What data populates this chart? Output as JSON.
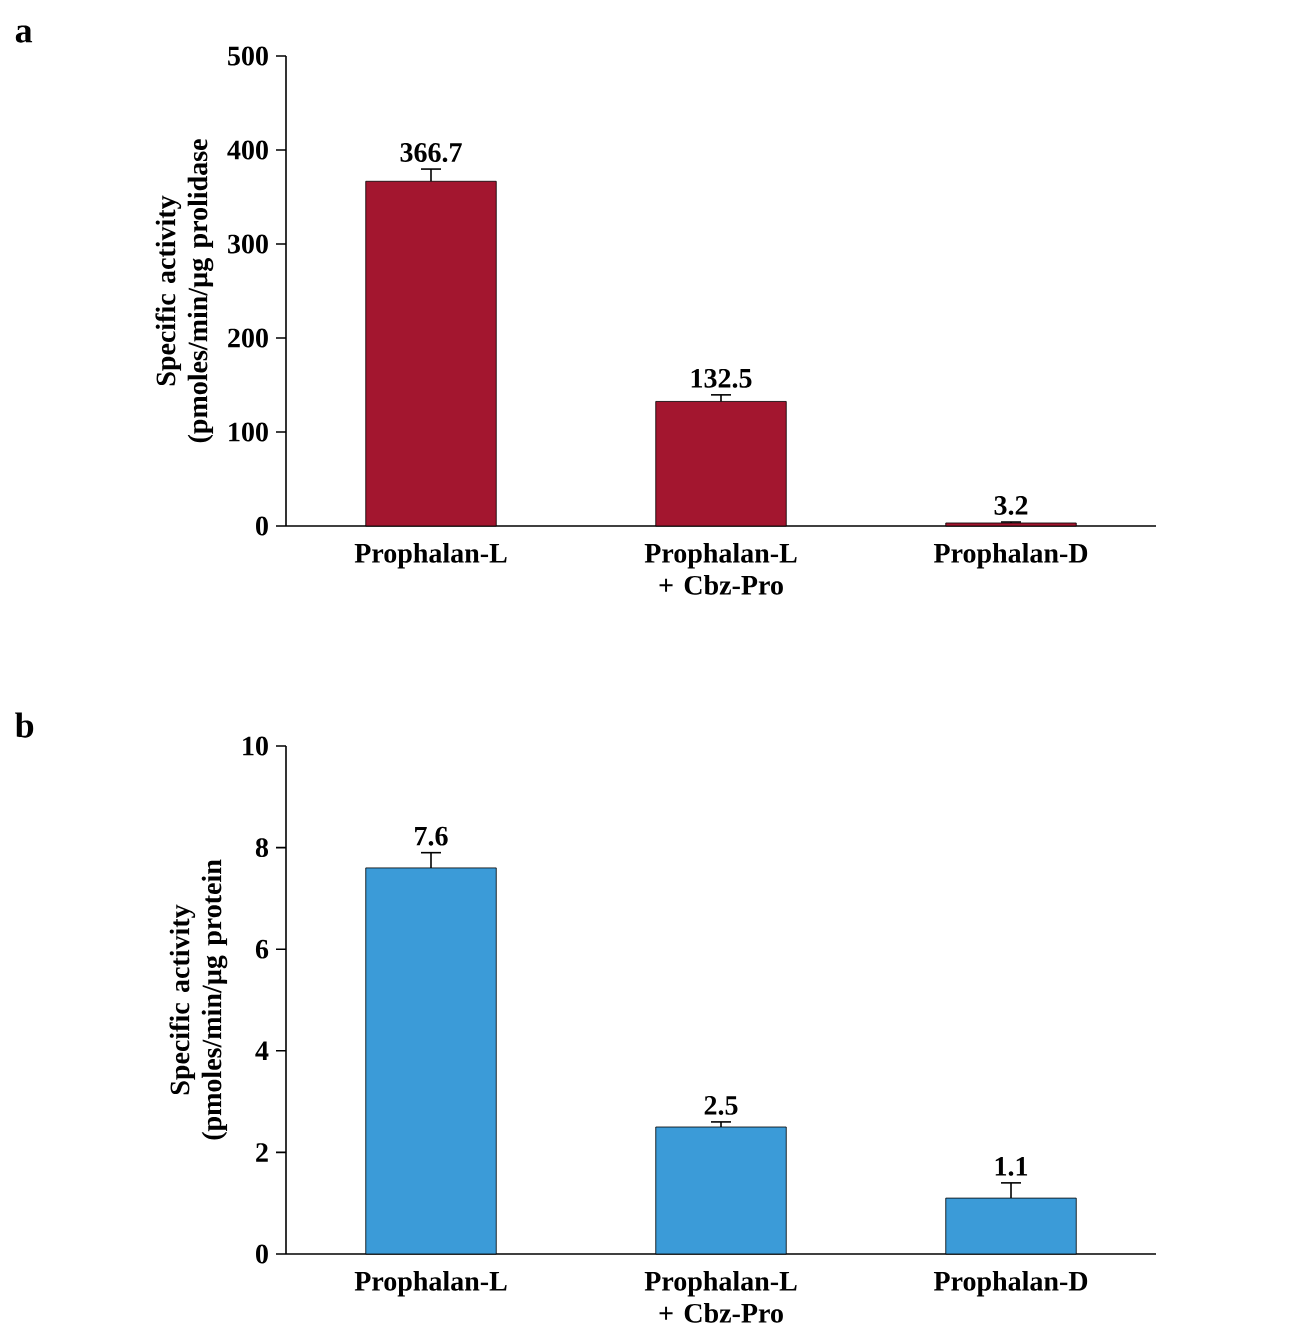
{
  "chart_data": [
    {
      "type": "bar",
      "ylabel": "Specific activity (pmoles/min/µg prolidase",
      "annotations": [
        "a"
      ],
      "categories": [
        "Prophalan-L",
        "Prophalan-L + Cbz-Pro",
        "Prophalan-D"
      ],
      "values": [
        366.7,
        132.5,
        3.2
      ],
      "errors": [
        13,
        7,
        1
      ],
      "color": "#a3162f",
      "ylim": [
        0,
        500
      ],
      "yticks": [
        0,
        100,
        200,
        300,
        400,
        500
      ],
      "data_labels": true
    },
    {
      "type": "bar",
      "ylabel": "Specific activity (pmoles/min/µg protein",
      "annotations": [
        "b"
      ],
      "categories": [
        "Prophalan-L",
        "Prophalan-L + Cbz-Pro",
        "Prophalan-D"
      ],
      "values": [
        7.6,
        2.5,
        1.1
      ],
      "errors": [
        0.3,
        0.1,
        0.3
      ],
      "color": "#3b9bd8",
      "ylim": [
        0,
        10
      ],
      "yticks": [
        0,
        2,
        4,
        6,
        8,
        10
      ],
      "data_labels": true
    }
  ]
}
